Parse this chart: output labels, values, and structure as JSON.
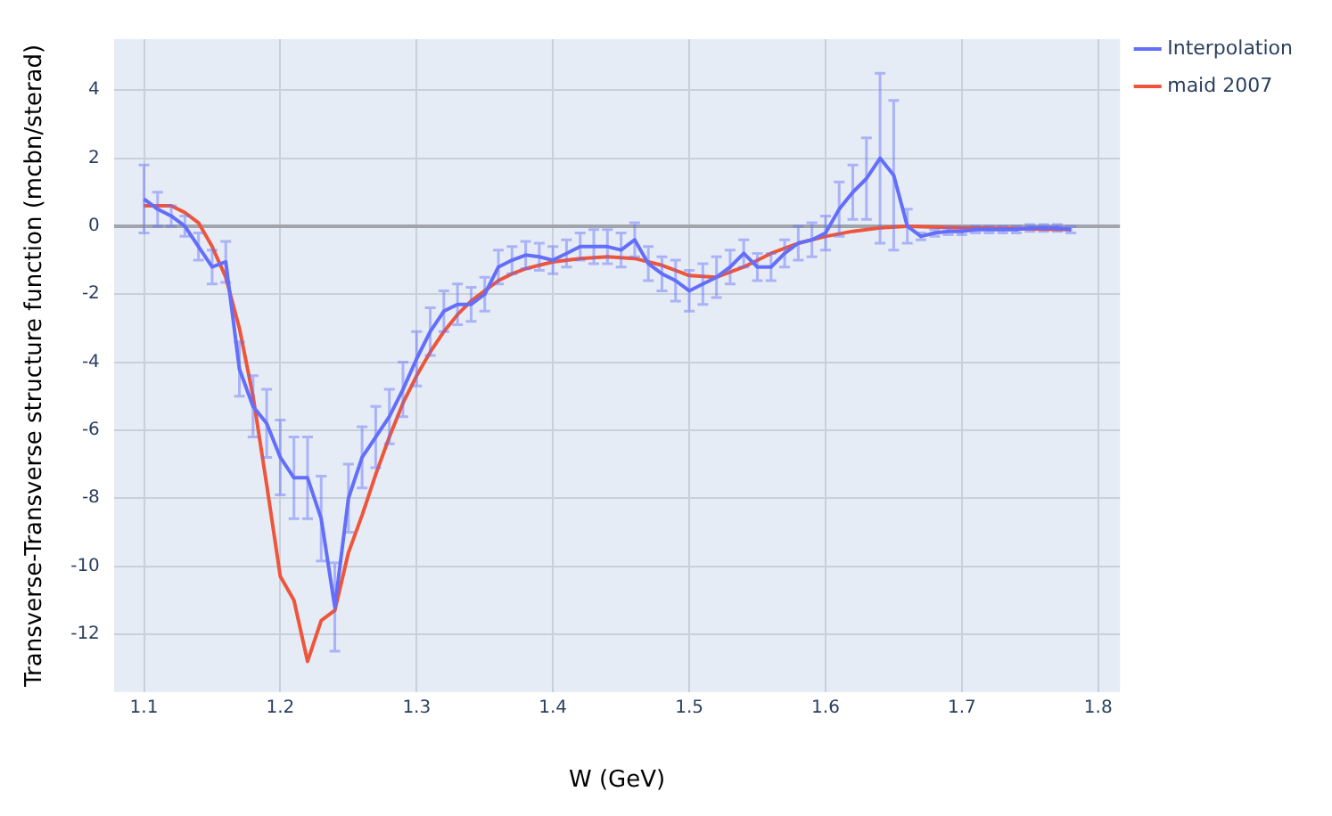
{
  "chart_data": {
    "type": "line",
    "xlabel": "W (GeV)",
    "ylabel": "Transverse-Transverse structure function (mcbn/sterad)",
    "xlim": [
      1.078,
      1.816
    ],
    "xticks": [
      1.1,
      1.2,
      1.3,
      1.4,
      1.5,
      1.6,
      1.7,
      1.8
    ],
    "ylim": [
      -13.7,
      5.5
    ],
    "yticks": [
      -12,
      -10,
      -8,
      -6,
      -4,
      -2,
      0,
      2,
      4
    ],
    "grid": true,
    "legend": "top right",
    "marker": "none",
    "line_style": "solid",
    "series": [
      {
        "name": "Interpolation",
        "color": "#636efa",
        "x": [
          1.1,
          1.11,
          1.12,
          1.13,
          1.14,
          1.15,
          1.16,
          1.17,
          1.18,
          1.19,
          1.2,
          1.21,
          1.22,
          1.23,
          1.24,
          1.25,
          1.26,
          1.27,
          1.28,
          1.29,
          1.3,
          1.31,
          1.32,
          1.33,
          1.34,
          1.35,
          1.36,
          1.37,
          1.38,
          1.39,
          1.4,
          1.41,
          1.42,
          1.43,
          1.44,
          1.45,
          1.46,
          1.47,
          1.48,
          1.49,
          1.5,
          1.51,
          1.52,
          1.53,
          1.54,
          1.55,
          1.56,
          1.57,
          1.58,
          1.59,
          1.6,
          1.61,
          1.62,
          1.63,
          1.64,
          1.65,
          1.66,
          1.67,
          1.68,
          1.69,
          1.7,
          1.71,
          1.72,
          1.73,
          1.74,
          1.75,
          1.76,
          1.77,
          1.78
        ],
        "values": [
          0.8,
          0.5,
          0.3,
          0.0,
          -0.6,
          -1.2,
          -1.05,
          -4.2,
          -5.3,
          -5.8,
          -6.8,
          -7.4,
          -7.4,
          -8.6,
          -11.2,
          -8.0,
          -6.8,
          -6.2,
          -5.6,
          -4.8,
          -3.9,
          -3.1,
          -2.5,
          -2.3,
          -2.3,
          -2.0,
          -1.2,
          -1.0,
          -0.85,
          -0.9,
          -1.0,
          -0.8,
          -0.6,
          -0.6,
          -0.6,
          -0.7,
          -0.4,
          -1.1,
          -1.4,
          -1.6,
          -1.9,
          -1.7,
          -1.5,
          -1.2,
          -0.8,
          -1.2,
          -1.2,
          -0.8,
          -0.5,
          -0.4,
          -0.2,
          0.5,
          1.0,
          1.4,
          2.0,
          1.5,
          0.0,
          -0.3,
          -0.2,
          -0.15,
          -0.15,
          -0.1,
          -0.1,
          -0.1,
          -0.1,
          -0.05,
          -0.05,
          -0.05,
          -0.1
        ],
        "errors": [
          1.0,
          0.5,
          0.3,
          0.3,
          0.4,
          0.5,
          0.6,
          0.8,
          0.9,
          1.0,
          1.1,
          1.2,
          1.2,
          1.25,
          1.3,
          1.0,
          0.9,
          0.9,
          0.8,
          0.8,
          0.8,
          0.7,
          0.6,
          0.6,
          0.5,
          0.5,
          0.5,
          0.4,
          0.4,
          0.4,
          0.4,
          0.4,
          0.4,
          0.5,
          0.5,
          0.5,
          0.5,
          0.5,
          0.5,
          0.6,
          0.6,
          0.6,
          0.6,
          0.5,
          0.4,
          0.4,
          0.4,
          0.4,
          0.5,
          0.5,
          0.5,
          0.8,
          0.8,
          1.2,
          2.5,
          2.2,
          0.5,
          0.1,
          0.1,
          0.1,
          0.1,
          0.1,
          0.1,
          0.1,
          0.1,
          0.1,
          0.1,
          0.1,
          0.1
        ]
      },
      {
        "name": "maid 2007",
        "color": "#ef553b",
        "x": [
          1.1,
          1.11,
          1.12,
          1.13,
          1.14,
          1.15,
          1.16,
          1.17,
          1.18,
          1.19,
          1.2,
          1.21,
          1.22,
          1.23,
          1.24,
          1.25,
          1.26,
          1.27,
          1.28,
          1.29,
          1.3,
          1.31,
          1.32,
          1.33,
          1.34,
          1.35,
          1.36,
          1.37,
          1.38,
          1.39,
          1.4,
          1.42,
          1.44,
          1.46,
          1.48,
          1.5,
          1.52,
          1.54,
          1.56,
          1.58,
          1.6,
          1.62,
          1.64,
          1.66,
          1.7,
          1.78
        ],
        "values": [
          0.6,
          0.6,
          0.6,
          0.4,
          0.1,
          -0.6,
          -1.5,
          -3.0,
          -5.0,
          -7.6,
          -10.3,
          -11.0,
          -12.8,
          -11.6,
          -11.3,
          -9.6,
          -8.5,
          -7.3,
          -6.2,
          -5.2,
          -4.4,
          -3.7,
          -3.1,
          -2.6,
          -2.2,
          -1.9,
          -1.6,
          -1.4,
          -1.25,
          -1.15,
          -1.05,
          -0.95,
          -0.9,
          -0.95,
          -1.15,
          -1.45,
          -1.5,
          -1.2,
          -0.8,
          -0.5,
          -0.3,
          -0.15,
          -0.05,
          0.0,
          -0.05,
          -0.1
        ]
      }
    ]
  }
}
